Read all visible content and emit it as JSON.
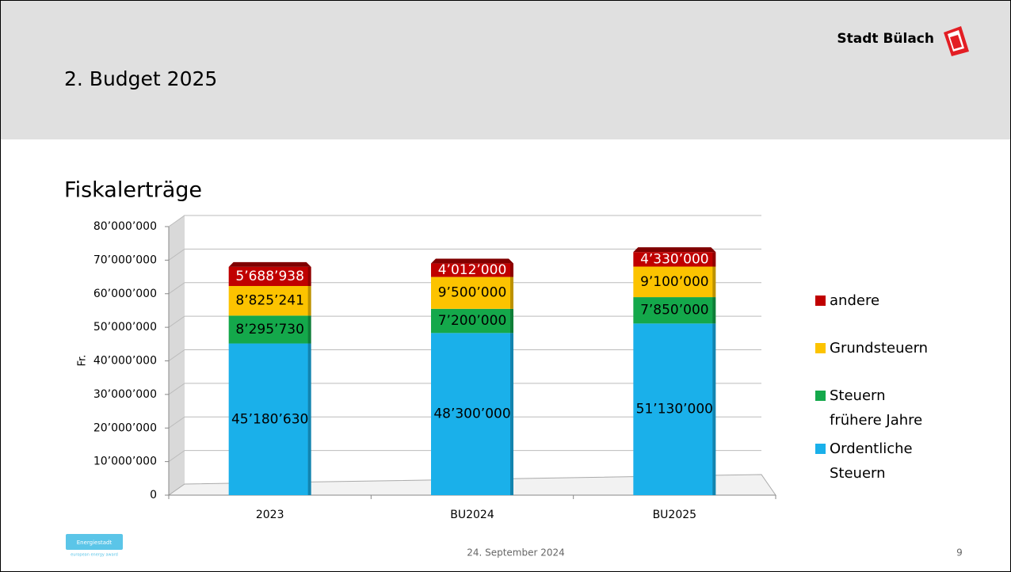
{
  "header": {
    "brand": "Stadt Bülach",
    "title": "2. Budget 2025"
  },
  "chart_data": {
    "type": "bar",
    "stacked": true,
    "title": "Fiskalerträge",
    "ylabel": "Fr.",
    "categories": [
      "2023",
      "BU2024",
      "BU2025"
    ],
    "series": [
      {
        "name": "Ordentliche Steuern",
        "color": "#1ab0ea",
        "values": [
          45180630,
          48300000,
          51130000
        ],
        "value_labels": [
          "45’180’630",
          "48’300’000",
          "51’130’000"
        ]
      },
      {
        "name": "Steuern frühere Jahre",
        "color": "#14a84b",
        "values": [
          8295730,
          7200000,
          7850000
        ],
        "value_labels": [
          "8’295’730",
          "7’200’000",
          "7’850’000"
        ]
      },
      {
        "name": "Grundsteuern",
        "color": "#fcc300",
        "values": [
          8825241,
          9500000,
          9100000
        ],
        "value_labels": [
          "8’825’241",
          "9’500’000",
          "9’100’000"
        ]
      },
      {
        "name": "andere",
        "color": "#c00000",
        "values": [
          5688938,
          4012000,
          4330000
        ],
        "value_labels": [
          "5’688’938",
          "4’012’000",
          "4’330’000"
        ]
      }
    ],
    "ylim": [
      0,
      80000000
    ],
    "yticks": [
      0,
      {
        "value": 10000000,
        "label": "10’000’000"
      },
      {
        "value": 20000000,
        "label": "20’000’000"
      },
      {
        "value": 30000000,
        "label": "30’000’000"
      },
      {
        "value": 40000000,
        "label": "40’000’000"
      },
      {
        "value": 50000000,
        "label": "50’000’000"
      },
      {
        "value": 60000000,
        "label": "60’000’000"
      },
      {
        "value": 70000000,
        "label": "70’000’000"
      },
      {
        "value": 80000000,
        "label": "80’000’000"
      }
    ],
    "grid": true,
    "legend": "right"
  },
  "footer": {
    "logo": "Energiestadt",
    "logo_sub": "european energy award",
    "date": "24. September 2024",
    "page": "9"
  }
}
